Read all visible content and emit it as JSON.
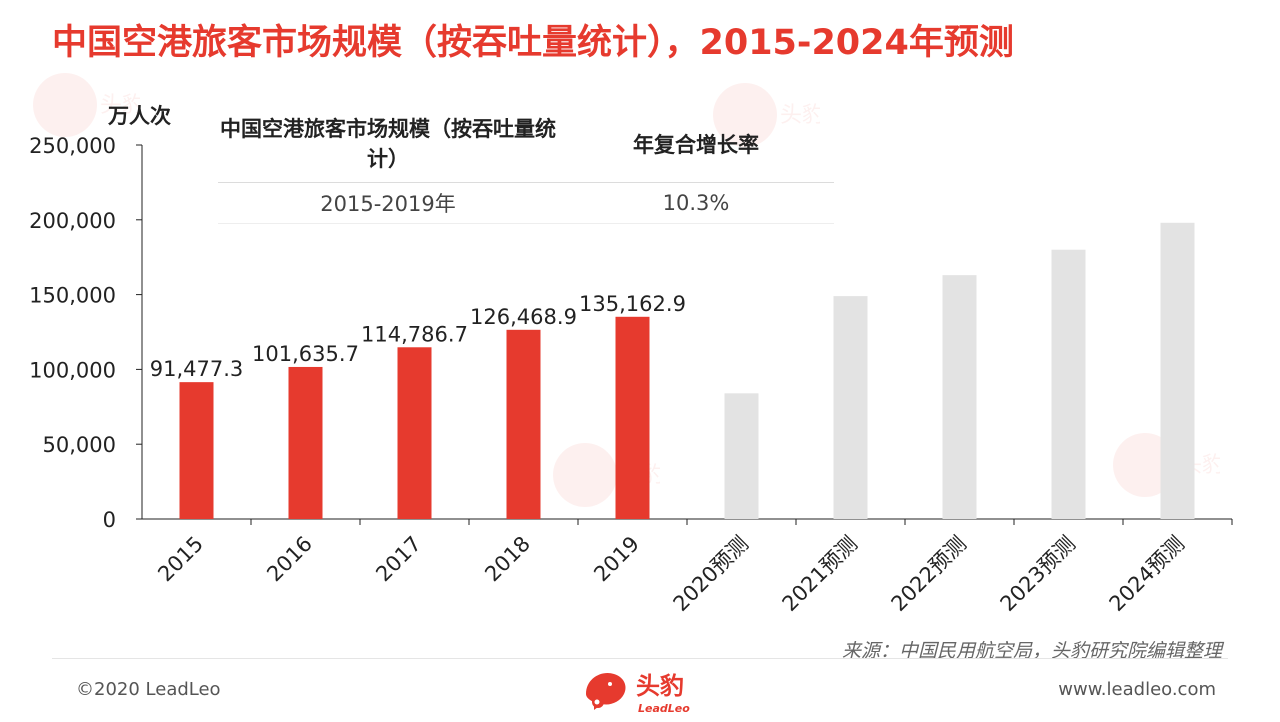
{
  "title": "中国空港旅客市场规模（按吞吐量统计），2015-2024年预测",
  "unit": "万人次",
  "summary": {
    "header_metric": "中国空港旅客市场规模（按吞吐量统计）",
    "header_rate": "年复合增长率",
    "period": "2015-2019年",
    "rate": "10.3%"
  },
  "source": "来源：中国民用航空局，头豹研究院编辑整理",
  "copyright": "©2020 LeadLeo",
  "website": "www.leadleo.com",
  "logo": {
    "cn": "头豹",
    "en": "LeadLeo"
  },
  "colors": {
    "actual": "#e63a2e",
    "forecast": "#e3e3e3",
    "title": "#e63a2e"
  },
  "chart_data": {
    "type": "bar",
    "categories": [
      "2015",
      "2016",
      "2017",
      "2018",
      "2019",
      "2020预测",
      "2021预测",
      "2022预测",
      "2023预测",
      "2024预测"
    ],
    "series": [
      {
        "values": [
          91477.3,
          101635.7,
          114786.7,
          126468.9,
          135162.9,
          84000,
          149000,
          163000,
          180000,
          198000
        ]
      }
    ],
    "data_labels": [
      "91,477.3",
      "101,635.7",
      "114,786.7",
      "126,468.9",
      "135,162.9",
      "",
      "",
      "",
      "",
      ""
    ],
    "forecast_start_index": 5,
    "yticks": [
      "0",
      "50,000",
      "100,000",
      "150,000",
      "200,000",
      "250,000"
    ],
    "ylim": [
      0,
      250000
    ],
    "ylabel": "万人次",
    "xlabel": "",
    "grid": false,
    "legend": "none"
  }
}
